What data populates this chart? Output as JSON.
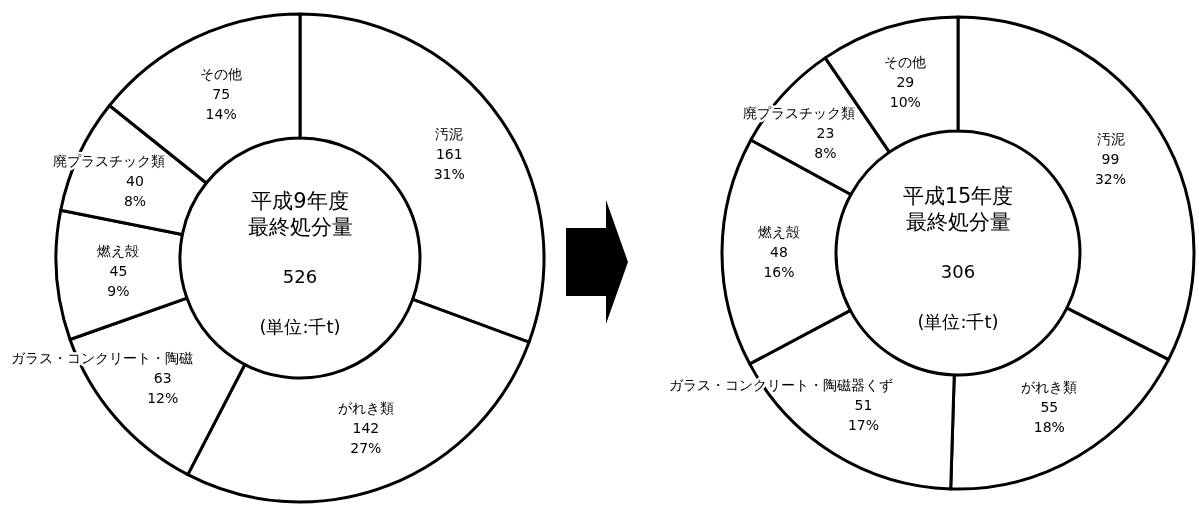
{
  "chart_data": [
    {
      "type": "donut",
      "title": "平成9年度",
      "subtitle": "最終処分量",
      "annotations": [
        "526",
        "(単位:千t)"
      ],
      "categories": [
        "汚泥",
        "がれき類",
        "ガラス・コンクリート・陶磁",
        "燃え殻",
        "廃プラスチック類",
        "その他"
      ],
      "values": [
        161,
        142,
        63,
        45,
        40,
        75
      ],
      "value_labels": [
        "161 31%",
        "142 27%",
        "63 12%",
        "45 9%",
        "40 8%",
        "75 14%"
      ],
      "colors": [
        "#ffffff",
        "#ffffff",
        "#ffffff",
        "#ffffff",
        "#ffffff",
        "#ffffff"
      ]
    },
    {
      "type": "donut",
      "title": "平成15年度",
      "subtitle": "最終処分量",
      "annotations": [
        "306",
        "(単位:千t)"
      ],
      "categories": [
        "汚泥",
        "がれき類",
        "ガラス・コンクリート・陶磁器くず",
        "燃え殻",
        "廃プラスチック類",
        "その他"
      ],
      "values": [
        99,
        55,
        51,
        48,
        23,
        29
      ],
      "value_labels": [
        "99 32%",
        "55 18%",
        "51 17%",
        "48 16%",
        "23 8%",
        "29 10%"
      ],
      "colors": [
        "#ffffff",
        "#ffffff",
        "#ffffff",
        "#ffffff",
        "#ffffff",
        "#ffffff"
      ]
    }
  ]
}
